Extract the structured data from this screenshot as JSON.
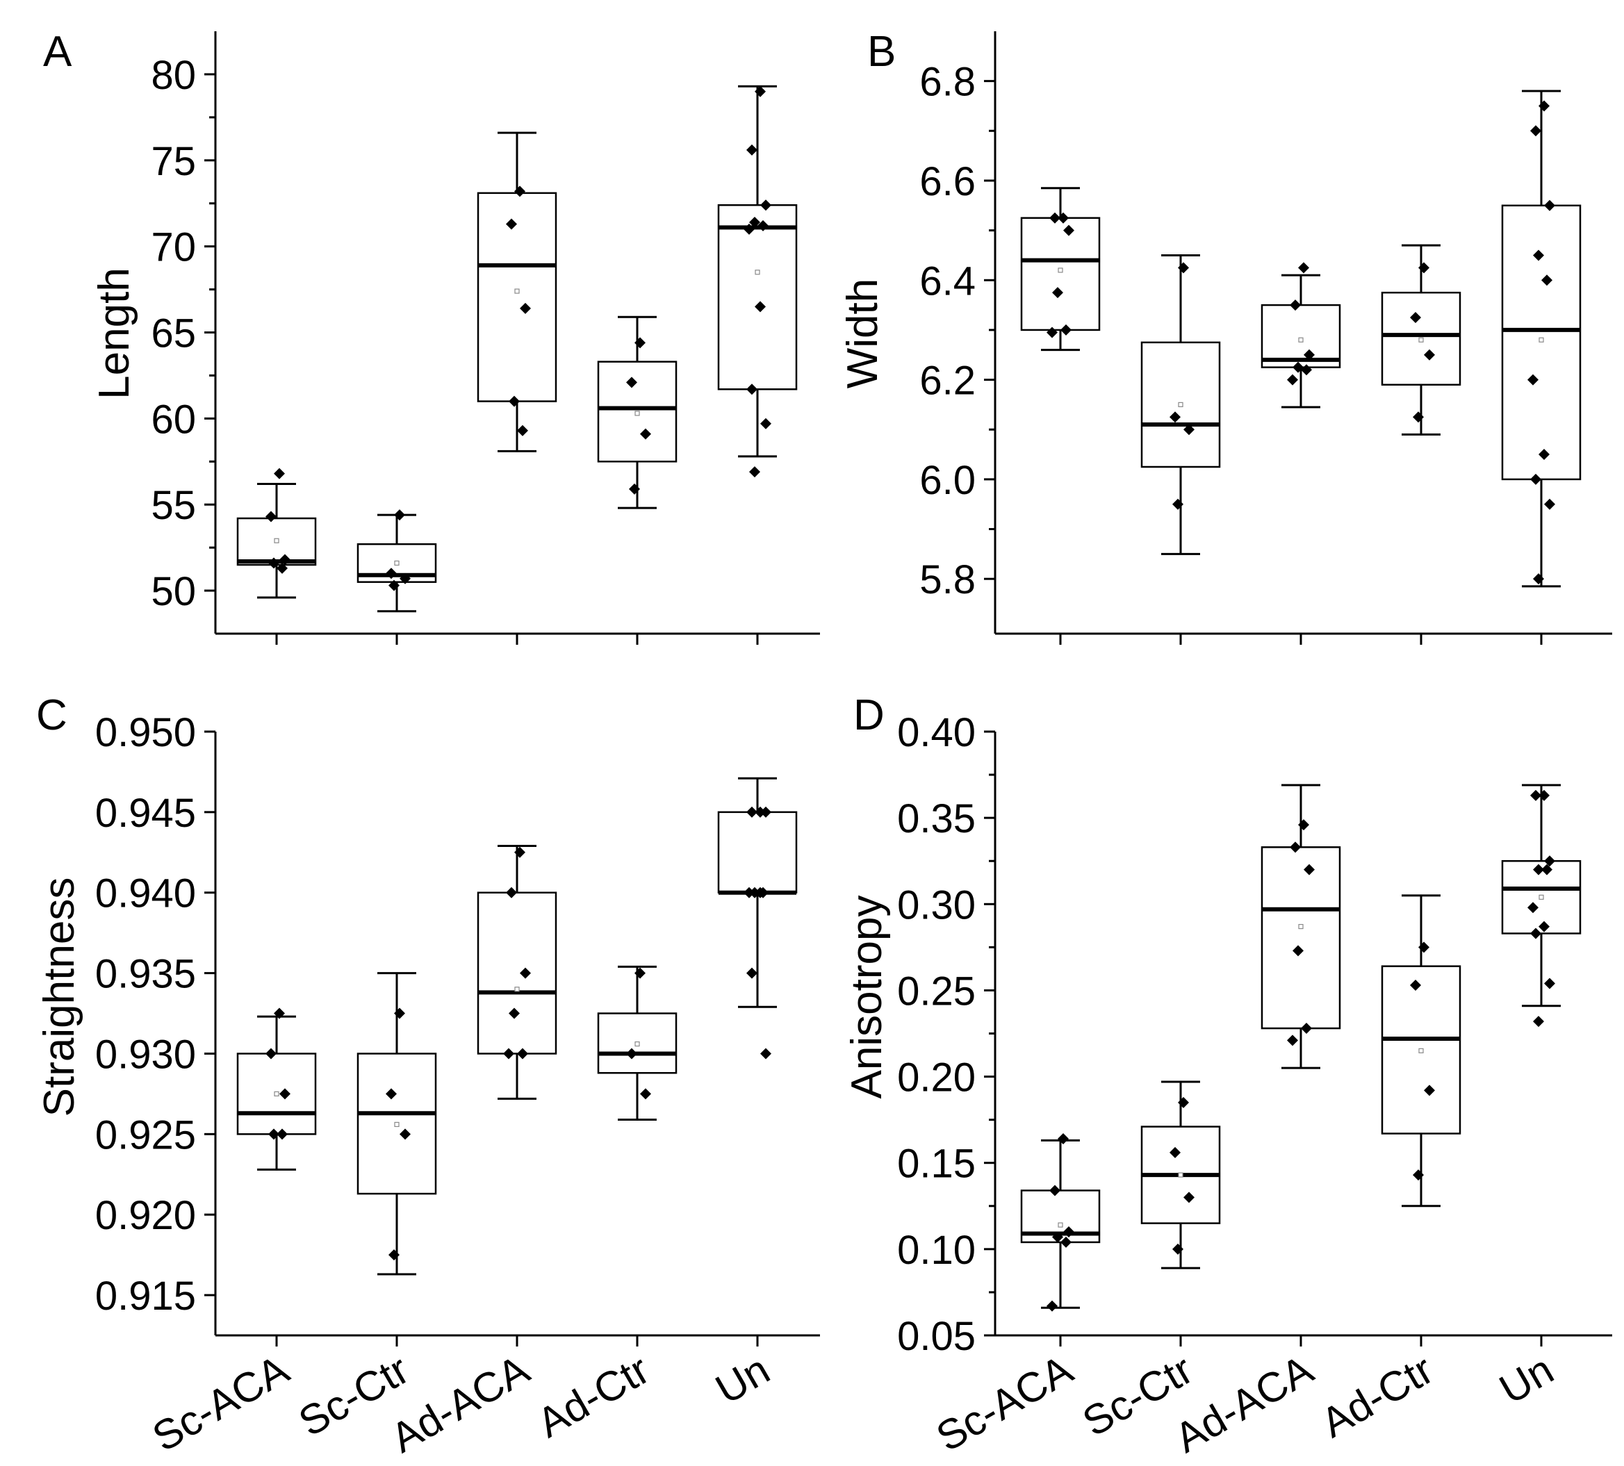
{
  "figure": {
    "categories": [
      "Sc-ACA",
      "Sc-Ctr",
      "Ad-ACA",
      "Ad-Ctr",
      "Un"
    ]
  },
  "chart_data": [
    {
      "panel": "A",
      "type": "box",
      "ylabel": "Length",
      "ylim": [
        47.5,
        82.5
      ],
      "yticks": [
        50,
        55,
        60,
        65,
        70,
        75,
        80
      ],
      "ytick_labels": [
        "50",
        "55",
        "60",
        "65",
        "70",
        "75",
        "80"
      ],
      "minor_ticks": true,
      "show_x_labels": false,
      "categories": [
        "Sc-ACA",
        "Sc-Ctr",
        "Ad-ACA",
        "Ad-Ctr",
        "Un"
      ],
      "boxes": [
        {
          "category": "Sc-ACA",
          "whisker_low": 49.6,
          "q1": 51.5,
          "median": 51.7,
          "q3": 54.2,
          "whisker_high": 56.2,
          "mean": 52.9,
          "points": [
            56.8,
            54.3,
            51.8,
            51.6,
            51.3
          ]
        },
        {
          "category": "Sc-Ctr",
          "whisker_low": 48.8,
          "q1": 50.5,
          "median": 50.9,
          "q3": 52.7,
          "whisker_high": 54.4,
          "mean": 51.6,
          "points": [
            54.4,
            51.0,
            50.7,
            50.3
          ]
        },
        {
          "category": "Ad-ACA",
          "whisker_low": 58.1,
          "q1": 61.0,
          "median": 68.9,
          "q3": 73.1,
          "whisker_high": 76.6,
          "mean": 67.4,
          "points": [
            73.2,
            71.3,
            66.4,
            61.0,
            59.3
          ]
        },
        {
          "category": "Ad-Ctr",
          "whisker_low": 54.8,
          "q1": 57.5,
          "median": 60.6,
          "q3": 63.3,
          "whisker_high": 65.9,
          "mean": 60.3,
          "points": [
            64.4,
            62.1,
            59.1,
            55.9
          ]
        },
        {
          "category": "Un",
          "whisker_low": 57.8,
          "q1": 61.7,
          "median": 71.1,
          "q3": 72.4,
          "whisker_high": 79.3,
          "mean": 68.5,
          "points": [
            79.0,
            75.6,
            72.4,
            71.4,
            71.2,
            71.0,
            66.5,
            61.7,
            59.7,
            56.9
          ]
        }
      ]
    },
    {
      "panel": "B",
      "type": "box",
      "ylabel": "Width",
      "ylim": [
        5.69,
        6.9
      ],
      "yticks": [
        5.8,
        6.0,
        6.2,
        6.4,
        6.6,
        6.8
      ],
      "ytick_labels": [
        "5.8",
        "6.0",
        "6.2",
        "6.4",
        "6.6",
        "6.8"
      ],
      "minor_ticks": true,
      "show_x_labels": false,
      "categories": [
        "Sc-ACA",
        "Sc-Ctr",
        "Ad-ACA",
        "Ad-Ctr",
        "Un"
      ],
      "boxes": [
        {
          "category": "Sc-ACA",
          "whisker_low": 6.26,
          "q1": 6.3,
          "median": 6.44,
          "q3": 6.525,
          "whisker_high": 6.585,
          "mean": 6.42,
          "points": [
            6.525,
            6.525,
            6.5,
            6.375,
            6.3,
            6.295
          ]
        },
        {
          "category": "Sc-Ctr",
          "whisker_low": 5.85,
          "q1": 6.025,
          "median": 6.11,
          "q3": 6.275,
          "whisker_high": 6.45,
          "mean": 6.15,
          "points": [
            6.425,
            6.125,
            6.1,
            5.95
          ]
        },
        {
          "category": "Ad-ACA",
          "whisker_low": 6.145,
          "q1": 6.225,
          "median": 6.24,
          "q3": 6.35,
          "whisker_high": 6.41,
          "mean": 6.28,
          "points": [
            6.425,
            6.35,
            6.25,
            6.225,
            6.22,
            6.2
          ]
        },
        {
          "category": "Ad-Ctr",
          "whisker_low": 6.09,
          "q1": 6.19,
          "median": 6.29,
          "q3": 6.375,
          "whisker_high": 6.47,
          "mean": 6.28,
          "points": [
            6.425,
            6.325,
            6.25,
            6.125
          ]
        },
        {
          "category": "Un",
          "whisker_low": 5.785,
          "q1": 6.0,
          "median": 6.3,
          "q3": 6.55,
          "whisker_high": 6.78,
          "mean": 6.28,
          "points": [
            6.75,
            6.7,
            6.55,
            6.45,
            6.4,
            6.2,
            6.05,
            6.0,
            5.95,
            5.8
          ]
        }
      ]
    },
    {
      "panel": "C",
      "type": "box",
      "ylabel": "Straightness",
      "ylim": [
        0.9125,
        0.95
      ],
      "yticks": [
        0.915,
        0.92,
        0.925,
        0.93,
        0.935,
        0.94,
        0.945,
        0.95
      ],
      "ytick_labels": [
        "0.915",
        "0.920",
        "0.925",
        "0.930",
        "0.935",
        "0.940",
        "0.945",
        "0.950"
      ],
      "minor_ticks": false,
      "show_x_labels": true,
      "categories": [
        "Sc-ACA",
        "Sc-Ctr",
        "Ad-ACA",
        "Ad-Ctr",
        "Un"
      ],
      "boxes": [
        {
          "category": "Sc-ACA",
          "whisker_low": 0.9228,
          "q1": 0.925,
          "median": 0.9263,
          "q3": 0.93,
          "whisker_high": 0.9323,
          "mean": 0.9275,
          "points": [
            0.9325,
            0.93,
            0.9275,
            0.925,
            0.925
          ]
        },
        {
          "category": "Sc-Ctr",
          "whisker_low": 0.9163,
          "q1": 0.9213,
          "median": 0.9263,
          "q3": 0.93,
          "whisker_high": 0.935,
          "mean": 0.9256,
          "points": [
            0.9325,
            0.9275,
            0.925,
            0.9175
          ]
        },
        {
          "category": "Ad-ACA",
          "whisker_low": 0.9272,
          "q1": 0.93,
          "median": 0.9338,
          "q3": 0.94,
          "whisker_high": 0.9429,
          "mean": 0.934,
          "points": [
            0.9425,
            0.94,
            0.935,
            0.9325,
            0.93,
            0.93
          ]
        },
        {
          "category": "Ad-Ctr",
          "whisker_low": 0.9259,
          "q1": 0.9288,
          "median": 0.93,
          "q3": 0.9325,
          "whisker_high": 0.9354,
          "mean": 0.9306,
          "points": [
            0.935,
            0.93,
            0.9275
          ]
        },
        {
          "category": "Un",
          "whisker_low": 0.9329,
          "q1": 0.94,
          "median": 0.94,
          "q3": 0.945,
          "whisker_high": 0.9471,
          "mean": 0.94,
          "points": [
            0.945,
            0.945,
            0.945,
            0.94,
            0.94,
            0.94,
            0.94,
            0.935,
            0.93
          ]
        }
      ]
    },
    {
      "panel": "D",
      "type": "box",
      "ylabel": "Anisotropy",
      "ylim": [
        0.05,
        0.4
      ],
      "yticks": [
        0.05,
        0.1,
        0.15,
        0.2,
        0.25,
        0.3,
        0.35,
        0.4
      ],
      "ytick_labels": [
        "0.05",
        "0.10",
        "0.15",
        "0.20",
        "0.25",
        "0.30",
        "0.35",
        "0.40"
      ],
      "minor_ticks": true,
      "show_x_labels": true,
      "categories": [
        "Sc-ACA",
        "Sc-Ctr",
        "Ad-ACA",
        "Ad-Ctr",
        "Un"
      ],
      "boxes": [
        {
          "category": "Sc-ACA",
          "whisker_low": 0.066,
          "q1": 0.104,
          "median": 0.109,
          "q3": 0.134,
          "whisker_high": 0.163,
          "mean": 0.114,
          "points": [
            0.164,
            0.134,
            0.11,
            0.107,
            0.104,
            0.067
          ]
        },
        {
          "category": "Sc-Ctr",
          "whisker_low": 0.089,
          "q1": 0.115,
          "median": 0.143,
          "q3": 0.171,
          "whisker_high": 0.197,
          "mean": 0.143,
          "points": [
            0.185,
            0.156,
            0.13,
            0.1
          ]
        },
        {
          "category": "Ad-ACA",
          "whisker_low": 0.205,
          "q1": 0.228,
          "median": 0.297,
          "q3": 0.333,
          "whisker_high": 0.369,
          "mean": 0.287,
          "points": [
            0.346,
            0.333,
            0.32,
            0.273,
            0.228,
            0.221
          ]
        },
        {
          "category": "Ad-Ctr",
          "whisker_low": 0.125,
          "q1": 0.167,
          "median": 0.222,
          "q3": 0.264,
          "whisker_high": 0.305,
          "mean": 0.215,
          "points": [
            0.275,
            0.253,
            0.192,
            0.143
          ]
        },
        {
          "category": "Un",
          "whisker_low": 0.241,
          "q1": 0.283,
          "median": 0.309,
          "q3": 0.325,
          "whisker_high": 0.369,
          "mean": 0.304,
          "points": [
            0.363,
            0.363,
            0.325,
            0.32,
            0.32,
            0.298,
            0.287,
            0.283,
            0.254,
            0.232
          ]
        }
      ]
    }
  ]
}
